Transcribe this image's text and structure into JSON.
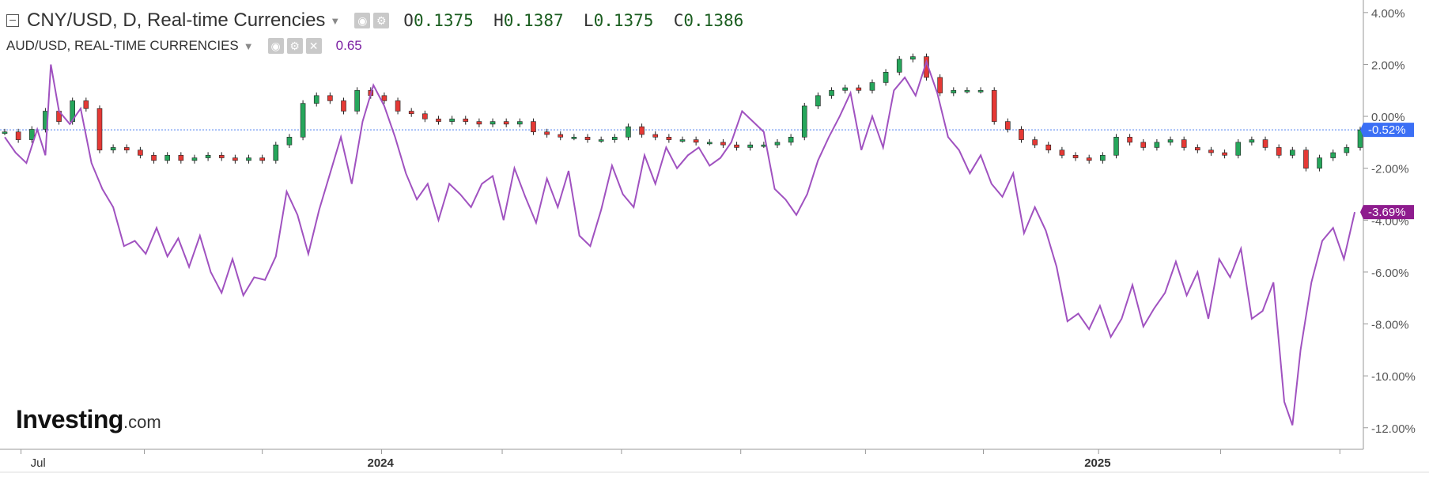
{
  "header": {
    "main_symbol": "CNY/USD, D, Real-time Currencies",
    "ohlc": {
      "o_label": "O",
      "o": "0.1375",
      "h_label": "H",
      "h": "0.1387",
      "l_label": "L",
      "l": "0.1375",
      "c_label": "C",
      "c": "0.1386"
    },
    "compare_symbol": "AUD/USD, REAL-TIME CURRENCIES",
    "compare_value": "0.65"
  },
  "logo": {
    "brand": "Investing",
    "suffix": ".com"
  },
  "colors": {
    "up": "#26a65b",
    "down": "#e53935",
    "aud_line": "#a052c0",
    "cny_badge": "#3b6ff5",
    "aud_badge": "#8e1c8e",
    "ref_line": "#4a7df0"
  },
  "chart_data": {
    "type": "line",
    "y_unit": "percent change",
    "ylim": [
      -12.8,
      4.3
    ],
    "y_ticks": [
      "4.00%",
      "2.00%",
      "0.00%",
      "-2.00%",
      "-4.00%",
      "-6.00%",
      "-8.00%",
      "-10.00%",
      "-12.00%"
    ],
    "y_tick_values": [
      4,
      2,
      0,
      -2,
      -4,
      -6,
      -8,
      -10,
      -12
    ],
    "x_labels": [
      {
        "label": "Jul",
        "t": 0.012,
        "bold": false
      },
      {
        "label": "2024",
        "t": 0.278,
        "bold": true
      },
      {
        "label": "2025",
        "t": 0.807,
        "bold": true
      }
    ],
    "x_minor_ticks": [
      0.012,
      0.103,
      0.19,
      0.278,
      0.367,
      0.455,
      0.543,
      0.635,
      0.722,
      0.807,
      0.897,
      0.985
    ],
    "legend": "top-left",
    "grid": false,
    "last_values": {
      "cny": "-0.52%",
      "aud": "-3.69%"
    },
    "series": [
      {
        "name": "CNY/USD",
        "style": "candlestick",
        "points": [
          [
            0,
            -0.6
          ],
          [
            0.01,
            -0.9
          ],
          [
            0.02,
            -0.5
          ],
          [
            0.03,
            0.2
          ],
          [
            0.04,
            -0.2
          ],
          [
            0.05,
            0.6
          ],
          [
            0.06,
            0.3
          ],
          [
            0.07,
            -1.3
          ],
          [
            0.08,
            -1.2
          ],
          [
            0.09,
            -1.3
          ],
          [
            0.1,
            -1.5
          ],
          [
            0.11,
            -1.7
          ],
          [
            0.12,
            -1.5
          ],
          [
            0.13,
            -1.7
          ],
          [
            0.14,
            -1.6
          ],
          [
            0.15,
            -1.5
          ],
          [
            0.16,
            -1.6
          ],
          [
            0.17,
            -1.7
          ],
          [
            0.18,
            -1.6
          ],
          [
            0.19,
            -1.7
          ],
          [
            0.2,
            -1.1
          ],
          [
            0.21,
            -0.8
          ],
          [
            0.22,
            0.5
          ],
          [
            0.23,
            0.8
          ],
          [
            0.24,
            0.6
          ],
          [
            0.25,
            0.2
          ],
          [
            0.26,
            1.0
          ],
          [
            0.27,
            0.8
          ],
          [
            0.28,
            0.6
          ],
          [
            0.29,
            0.2
          ],
          [
            0.3,
            0.1
          ],
          [
            0.31,
            -0.1
          ],
          [
            0.32,
            -0.2
          ],
          [
            0.33,
            -0.1
          ],
          [
            0.34,
            -0.2
          ],
          [
            0.35,
            -0.3
          ],
          [
            0.36,
            -0.2
          ],
          [
            0.37,
            -0.3
          ],
          [
            0.38,
            -0.2
          ],
          [
            0.39,
            -0.6
          ],
          [
            0.4,
            -0.7
          ],
          [
            0.41,
            -0.8
          ],
          [
            0.42,
            -0.8
          ],
          [
            0.43,
            -0.9
          ],
          [
            0.44,
            -0.9
          ],
          [
            0.45,
            -0.8
          ],
          [
            0.46,
            -0.4
          ],
          [
            0.47,
            -0.7
          ],
          [
            0.48,
            -0.8
          ],
          [
            0.49,
            -0.9
          ],
          [
            0.5,
            -0.9
          ],
          [
            0.51,
            -1.0
          ],
          [
            0.52,
            -1.0
          ],
          [
            0.53,
            -1.1
          ],
          [
            0.54,
            -1.2
          ],
          [
            0.55,
            -1.1
          ],
          [
            0.56,
            -1.1
          ],
          [
            0.57,
            -1.0
          ],
          [
            0.58,
            -0.8
          ],
          [
            0.59,
            0.4
          ],
          [
            0.6,
            0.8
          ],
          [
            0.61,
            1.0
          ],
          [
            0.62,
            1.1
          ],
          [
            0.63,
            1.0
          ],
          [
            0.64,
            1.3
          ],
          [
            0.65,
            1.7
          ],
          [
            0.66,
            2.2
          ],
          [
            0.67,
            2.3
          ],
          [
            0.68,
            1.5
          ],
          [
            0.69,
            0.9
          ],
          [
            0.7,
            1.0
          ],
          [
            0.71,
            1.0
          ],
          [
            0.72,
            1.0
          ],
          [
            0.73,
            -0.2
          ],
          [
            0.74,
            -0.5
          ],
          [
            0.75,
            -0.9
          ],
          [
            0.76,
            -1.1
          ],
          [
            0.77,
            -1.3
          ],
          [
            0.78,
            -1.5
          ],
          [
            0.79,
            -1.6
          ],
          [
            0.8,
            -1.7
          ],
          [
            0.81,
            -1.5
          ],
          [
            0.82,
            -0.8
          ],
          [
            0.83,
            -1.0
          ],
          [
            0.84,
            -1.2
          ],
          [
            0.85,
            -1.0
          ],
          [
            0.86,
            -0.9
          ],
          [
            0.87,
            -1.2
          ],
          [
            0.88,
            -1.3
          ],
          [
            0.89,
            -1.4
          ],
          [
            0.9,
            -1.5
          ],
          [
            0.91,
            -1.0
          ],
          [
            0.92,
            -0.9
          ],
          [
            0.93,
            -1.2
          ],
          [
            0.94,
            -1.5
          ],
          [
            0.95,
            -1.3
          ],
          [
            0.96,
            -2.0
          ],
          [
            0.97,
            -1.6
          ],
          [
            0.98,
            -1.4
          ],
          [
            0.99,
            -1.2
          ],
          [
            1.0,
            -0.52
          ]
        ]
      },
      {
        "name": "AUD/USD",
        "style": "line",
        "points": [
          [
            0,
            -0.8
          ],
          [
            0.008,
            -1.4
          ],
          [
            0.016,
            -1.8
          ],
          [
            0.024,
            -0.5
          ],
          [
            0.03,
            -1.5
          ],
          [
            0.034,
            2.0
          ],
          [
            0.04,
            0.2
          ],
          [
            0.048,
            -0.3
          ],
          [
            0.056,
            0.3
          ],
          [
            0.064,
            -1.8
          ],
          [
            0.072,
            -2.8
          ],
          [
            0.08,
            -3.5
          ],
          [
            0.088,
            -5.0
          ],
          [
            0.096,
            -4.8
          ],
          [
            0.104,
            -5.3
          ],
          [
            0.112,
            -4.3
          ],
          [
            0.12,
            -5.4
          ],
          [
            0.128,
            -4.7
          ],
          [
            0.136,
            -5.8
          ],
          [
            0.144,
            -4.6
          ],
          [
            0.152,
            -6.0
          ],
          [
            0.16,
            -6.8
          ],
          [
            0.168,
            -5.5
          ],
          [
            0.176,
            -6.9
          ],
          [
            0.184,
            -6.2
          ],
          [
            0.192,
            -6.3
          ],
          [
            0.2,
            -5.4
          ],
          [
            0.208,
            -2.9
          ],
          [
            0.216,
            -3.8
          ],
          [
            0.224,
            -5.3
          ],
          [
            0.232,
            -3.6
          ],
          [
            0.24,
            -2.2
          ],
          [
            0.248,
            -0.8
          ],
          [
            0.256,
            -2.6
          ],
          [
            0.264,
            -0.2
          ],
          [
            0.272,
            1.2
          ],
          [
            0.28,
            0.4
          ],
          [
            0.288,
            -0.8
          ],
          [
            0.296,
            -2.2
          ],
          [
            0.304,
            -3.2
          ],
          [
            0.312,
            -2.6
          ],
          [
            0.32,
            -4.0
          ],
          [
            0.328,
            -2.6
          ],
          [
            0.336,
            -3.0
          ],
          [
            0.344,
            -3.5
          ],
          [
            0.352,
            -2.6
          ],
          [
            0.36,
            -2.3
          ],
          [
            0.368,
            -4.0
          ],
          [
            0.376,
            -2.0
          ],
          [
            0.384,
            -3.1
          ],
          [
            0.392,
            -4.1
          ],
          [
            0.4,
            -2.4
          ],
          [
            0.408,
            -3.5
          ],
          [
            0.416,
            -2.1
          ],
          [
            0.424,
            -4.6
          ],
          [
            0.432,
            -5.0
          ],
          [
            0.44,
            -3.6
          ],
          [
            0.448,
            -1.9
          ],
          [
            0.456,
            -3.0
          ],
          [
            0.464,
            -3.5
          ],
          [
            0.472,
            -1.5
          ],
          [
            0.48,
            -2.6
          ],
          [
            0.488,
            -1.2
          ],
          [
            0.496,
            -2.0
          ],
          [
            0.504,
            -1.5
          ],
          [
            0.512,
            -1.2
          ],
          [
            0.52,
            -1.9
          ],
          [
            0.528,
            -1.6
          ],
          [
            0.536,
            -1.0
          ],
          [
            0.544,
            0.2
          ],
          [
            0.552,
            -0.2
          ],
          [
            0.56,
            -0.6
          ],
          [
            0.568,
            -2.8
          ],
          [
            0.576,
            -3.2
          ],
          [
            0.584,
            -3.8
          ],
          [
            0.592,
            -3.0
          ],
          [
            0.6,
            -1.7
          ],
          [
            0.608,
            -0.8
          ],
          [
            0.616,
            0.0
          ],
          [
            0.624,
            0.9
          ],
          [
            0.632,
            -1.3
          ],
          [
            0.64,
            0.0
          ],
          [
            0.648,
            -1.2
          ],
          [
            0.656,
            1.0
          ],
          [
            0.664,
            1.5
          ],
          [
            0.672,
            0.8
          ],
          [
            0.68,
            2.1
          ],
          [
            0.688,
            0.9
          ],
          [
            0.696,
            -0.8
          ],
          [
            0.704,
            -1.3
          ],
          [
            0.712,
            -2.2
          ],
          [
            0.72,
            -1.5
          ],
          [
            0.728,
            -2.6
          ],
          [
            0.736,
            -3.1
          ],
          [
            0.744,
            -2.2
          ],
          [
            0.752,
            -4.5
          ],
          [
            0.76,
            -3.5
          ],
          [
            0.768,
            -4.4
          ],
          [
            0.776,
            -5.8
          ],
          [
            0.784,
            -7.9
          ],
          [
            0.792,
            -7.6
          ],
          [
            0.8,
            -8.2
          ],
          [
            0.808,
            -7.3
          ],
          [
            0.816,
            -8.5
          ],
          [
            0.824,
            -7.8
          ],
          [
            0.832,
            -6.5
          ],
          [
            0.84,
            -8.1
          ],
          [
            0.848,
            -7.4
          ],
          [
            0.856,
            -6.8
          ],
          [
            0.864,
            -5.6
          ],
          [
            0.872,
            -6.9
          ],
          [
            0.88,
            -6.0
          ],
          [
            0.888,
            -7.8
          ],
          [
            0.896,
            -5.5
          ],
          [
            0.904,
            -6.2
          ],
          [
            0.912,
            -5.1
          ],
          [
            0.92,
            -7.8
          ],
          [
            0.928,
            -7.5
          ],
          [
            0.936,
            -6.4
          ],
          [
            0.944,
            -11.0
          ],
          [
            0.95,
            -11.9
          ],
          [
            0.956,
            -9.0
          ],
          [
            0.964,
            -6.4
          ],
          [
            0.972,
            -4.8
          ],
          [
            0.98,
            -4.3
          ],
          [
            0.988,
            -5.5
          ],
          [
            0.996,
            -3.69
          ]
        ]
      }
    ]
  }
}
